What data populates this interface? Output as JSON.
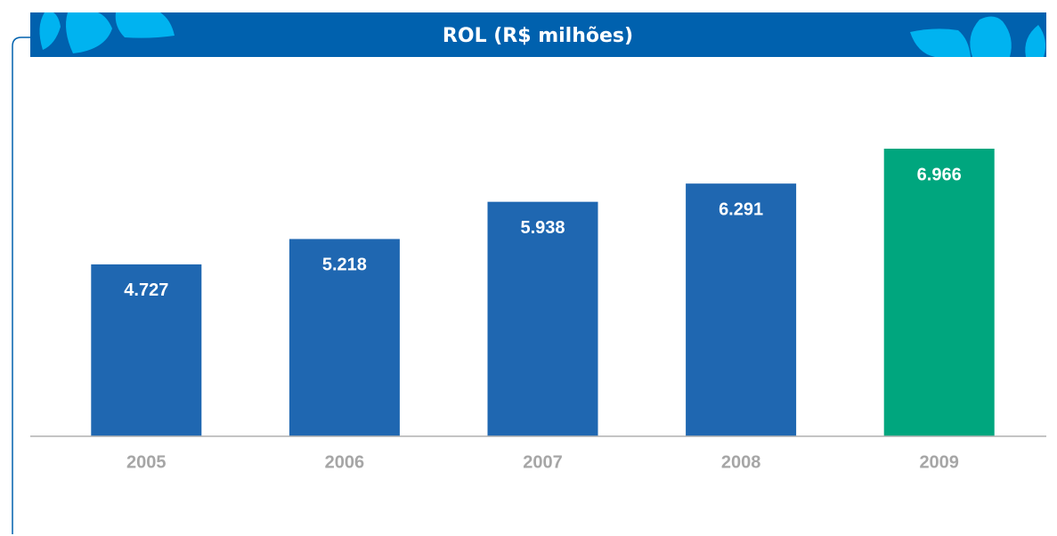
{
  "chart_data": {
    "type": "bar",
    "title": "ROL (R$ milhões)",
    "categories": [
      "2005",
      "2006",
      "2007",
      "2008",
      "2009"
    ],
    "values": [
      4727,
      5218,
      5938,
      6291,
      6966
    ],
    "value_labels": [
      "4.727",
      "5.218",
      "5.938",
      "6.291",
      "6.966"
    ],
    "colors": [
      "#1f67b1",
      "#1f67b1",
      "#1f67b1",
      "#1f67b1",
      "#00a67e"
    ],
    "ylim": [
      1400,
      8000
    ]
  }
}
